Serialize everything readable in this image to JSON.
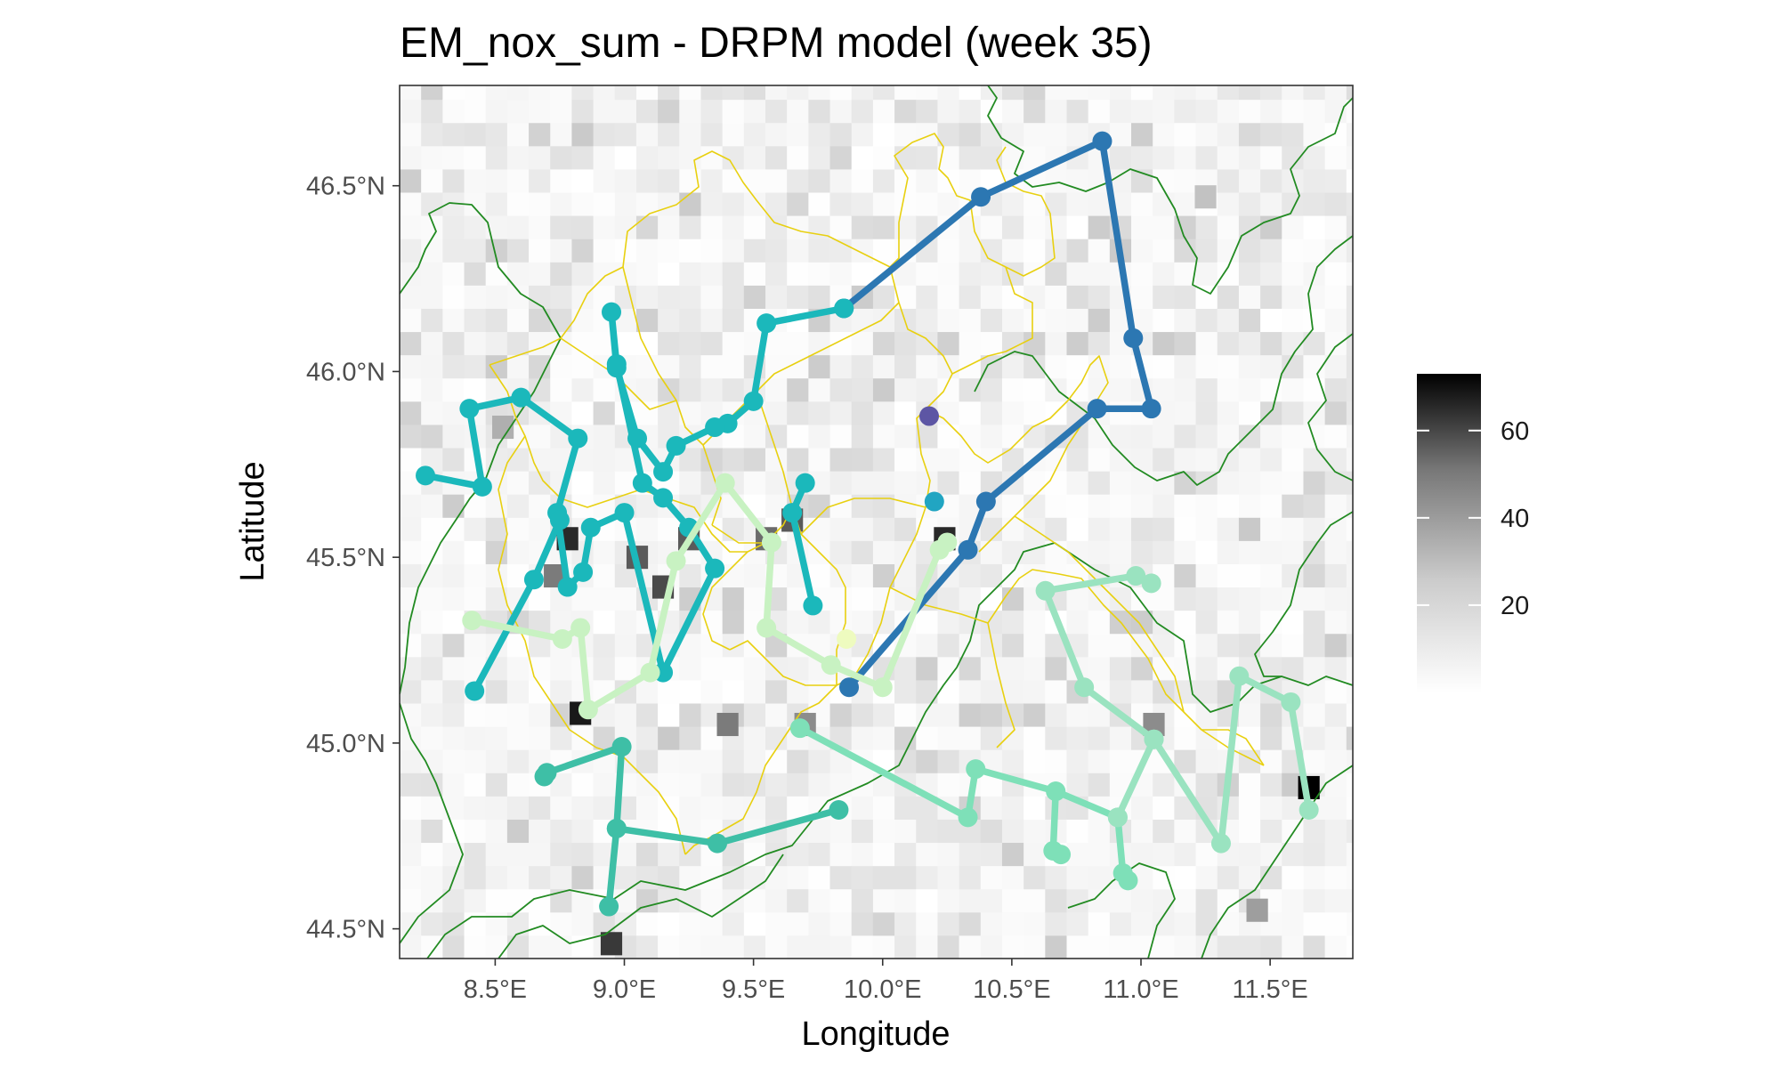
{
  "chart_data": {
    "type": "map",
    "title": "EM_nox_sum - DRPM model (week 35)",
    "xlabel": "Longitude",
    "ylabel": "Latitude",
    "xlim": [
      8.13,
      11.82
    ],
    "ylim": [
      44.42,
      46.77
    ],
    "x_ticks": [
      8.5,
      9.0,
      9.5,
      10.0,
      10.5,
      11.0,
      11.5
    ],
    "x_tick_labels": [
      "8.5°E",
      "9.0°E",
      "9.5°E",
      "10.0°E",
      "10.5°E",
      "11.0°E",
      "11.5°E"
    ],
    "y_ticks": [
      44.5,
      45.0,
      45.5,
      46.0,
      46.5
    ],
    "y_tick_labels": [
      "44.5°N",
      "45.0°N",
      "45.5°N",
      "46.0°N",
      "46.5°N"
    ],
    "grid": false,
    "legend": {
      "placement": "right",
      "type": "colorbar",
      "range": [
        0,
        73
      ],
      "ticks": [
        20,
        40,
        60
      ],
      "tick_labels": [
        "20",
        "40",
        "60"
      ],
      "color_low": "#ffffff",
      "color_high": "#000000"
    },
    "colors": {
      "border_outer": "#228b22",
      "border_inner": "#e8d010",
      "panel_border": "#333333"
    },
    "heatmap_hotspots": [
      {
        "lon": 8.83,
        "lat": 45.08,
        "value": 65
      },
      {
        "lon": 8.78,
        "lat": 45.55,
        "value": 60
      },
      {
        "lon": 10.24,
        "lat": 45.55,
        "value": 60
      },
      {
        "lon": 11.65,
        "lat": 44.88,
        "value": 73
      },
      {
        "lon": 8.95,
        "lat": 44.46,
        "value": 55
      },
      {
        "lon": 9.15,
        "lat": 45.42,
        "value": 50
      },
      {
        "lon": 9.05,
        "lat": 45.5,
        "value": 45
      },
      {
        "lon": 9.25,
        "lat": 45.55,
        "value": 45
      },
      {
        "lon": 9.55,
        "lat": 45.55,
        "value": 40
      },
      {
        "lon": 9.65,
        "lat": 45.6,
        "value": 45
      },
      {
        "lon": 9.4,
        "lat": 45.05,
        "value": 35
      },
      {
        "lon": 9.7,
        "lat": 45.05,
        "value": 30
      },
      {
        "lon": 11.05,
        "lat": 45.05,
        "value": 30
      },
      {
        "lon": 11.45,
        "lat": 44.55,
        "value": 25
      },
      {
        "lon": 8.73,
        "lat": 45.45,
        "value": 35
      },
      {
        "lon": 8.53,
        "lat": 45.85,
        "value": 20
      },
      {
        "lon": 11.25,
        "lat": 46.47,
        "value": 15
      }
    ],
    "clusters": [
      {
        "color": "#2c77b2",
        "points": [
          [
            9.87,
            45.15
          ],
          [
            10.33,
            45.52
          ],
          [
            10.4,
            45.65
          ],
          [
            10.83,
            45.9
          ],
          [
            11.04,
            45.9
          ],
          [
            10.97,
            46.09
          ],
          [
            10.85,
            46.62
          ],
          [
            10.38,
            46.47
          ],
          [
            9.85,
            46.17
          ]
        ]
      },
      {
        "color": "#21a5c2",
        "points": [
          [
            10.2,
            45.65
          ]
        ]
      },
      {
        "color": "#5d56a4",
        "points": [
          [
            10.18,
            45.88
          ]
        ]
      },
      {
        "color": "#1bb8bb",
        "points": [
          [
            9.85,
            46.17
          ],
          [
            9.55,
            46.13
          ],
          [
            9.5,
            45.92
          ],
          [
            9.4,
            45.86
          ],
          [
            9.35,
            45.85
          ],
          [
            9.2,
            45.8
          ],
          [
            9.15,
            45.73
          ],
          [
            9.05,
            45.82
          ],
          [
            8.97,
            46.01
          ],
          [
            8.95,
            46.16
          ],
          [
            8.97,
            46.02
          ],
          [
            9.07,
            45.7
          ],
          [
            9.15,
            45.66
          ],
          [
            9.25,
            45.58
          ],
          [
            9.35,
            45.47
          ],
          [
            9.15,
            45.19
          ],
          [
            9.0,
            45.62
          ],
          [
            8.87,
            45.58
          ],
          [
            8.84,
            45.46
          ],
          [
            8.78,
            45.42
          ],
          [
            8.74,
            45.62
          ],
          [
            8.82,
            45.82
          ],
          [
            8.6,
            45.93
          ],
          [
            8.4,
            45.9
          ],
          [
            8.45,
            45.69
          ],
          [
            8.23,
            45.72
          ]
        ]
      },
      {
        "color": "#1bb8bb",
        "points": [
          [
            8.75,
            45.6
          ],
          [
            8.65,
            45.44
          ],
          [
            8.42,
            45.14
          ]
        ]
      },
      {
        "color": "#1bb8bb",
        "points": [
          [
            9.7,
            45.7
          ],
          [
            9.65,
            45.62
          ],
          [
            9.73,
            45.37
          ]
        ]
      },
      {
        "color": "#3ebfa6",
        "points": [
          [
            8.94,
            44.56
          ],
          [
            8.97,
            44.77
          ],
          [
            8.99,
            44.99
          ],
          [
            8.7,
            44.92
          ],
          [
            8.69,
            44.91
          ]
        ]
      },
      {
        "color": "#3ebfa6",
        "points": [
          [
            8.97,
            44.77
          ],
          [
            9.36,
            44.73
          ],
          [
            9.83,
            44.82
          ]
        ]
      },
      {
        "color": "#7ee0b8",
        "points": [
          [
            9.68,
            45.04
          ],
          [
            10.33,
            44.8
          ],
          [
            10.36,
            44.93
          ],
          [
            10.67,
            44.87
          ],
          [
            10.66,
            44.71
          ],
          [
            10.69,
            44.7
          ]
        ]
      },
      {
        "color": "#7ee0b8",
        "points": [
          [
            10.67,
            44.87
          ],
          [
            10.91,
            44.8
          ],
          [
            10.93,
            44.65
          ],
          [
            10.95,
            44.63
          ]
        ]
      },
      {
        "color": "#9ae3c0",
        "points": [
          [
            11.05,
            45.01
          ],
          [
            10.78,
            45.15
          ],
          [
            10.63,
            45.41
          ],
          [
            10.98,
            45.45
          ],
          [
            11.04,
            45.43
          ]
        ]
      },
      {
        "color": "#9ae3c0",
        "points": [
          [
            10.91,
            44.8
          ],
          [
            11.05,
            45.01
          ],
          [
            11.31,
            44.73
          ],
          [
            11.38,
            45.18
          ],
          [
            11.58,
            45.11
          ],
          [
            11.65,
            44.82
          ]
        ]
      },
      {
        "color": "#c8f2c2",
        "points": [
          [
            8.41,
            45.33
          ],
          [
            8.76,
            45.28
          ],
          [
            8.83,
            45.31
          ],
          [
            8.86,
            45.09
          ],
          [
            9.1,
            45.19
          ],
          [
            9.2,
            45.49
          ],
          [
            9.39,
            45.7
          ],
          [
            9.57,
            45.54
          ],
          [
            9.55,
            45.31
          ],
          [
            9.8,
            45.21
          ],
          [
            10.0,
            45.15
          ],
          [
            10.22,
            45.52
          ],
          [
            10.25,
            45.54
          ]
        ]
      },
      {
        "color": "#eefbbf",
        "points": [
          [
            9.86,
            45.28
          ]
        ]
      }
    ]
  }
}
